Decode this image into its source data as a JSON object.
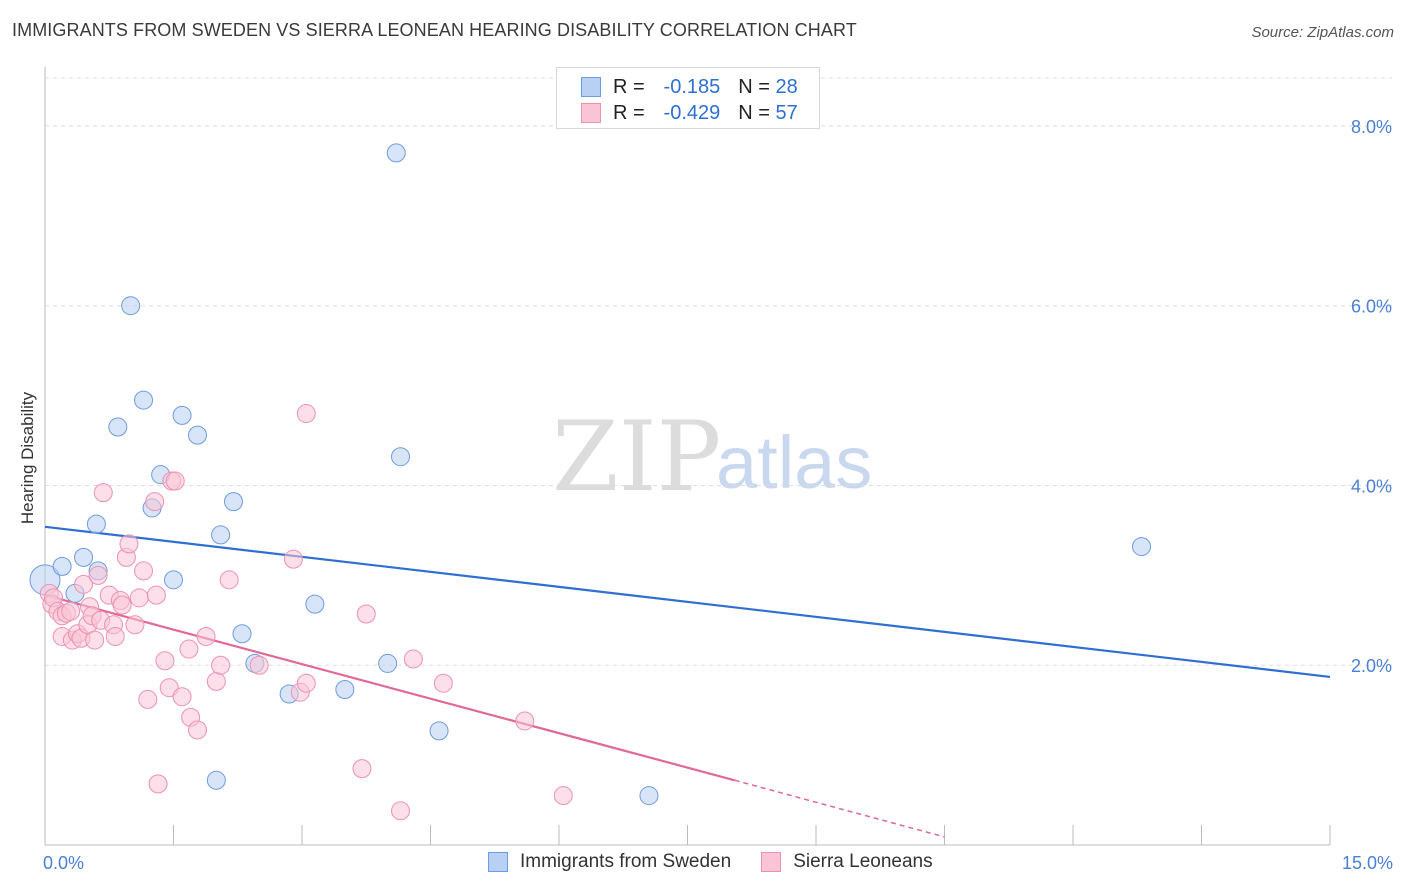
{
  "title": "IMMIGRANTS FROM SWEDEN VS SIERRA LEONEAN HEARING DISABILITY CORRELATION CHART",
  "source": "Source: ZipAtlas.com",
  "watermark": {
    "zip": "ZIP",
    "atlas": "atlas"
  },
  "legend_top": {
    "rows": [
      {
        "r_label": "R =",
        "r_value": "-0.185",
        "n_label": "N =",
        "n_value": "28",
        "fill": "#b8d0f4",
        "stroke": "#6f9be0"
      },
      {
        "r_label": "R =",
        "r_value": "-0.429",
        "n_label": "N =",
        "n_value": "57",
        "fill": "#f9c4d5",
        "stroke": "#ee91b0"
      }
    ]
  },
  "legend_bottom": {
    "items": [
      {
        "label": "Immigrants from Sweden",
        "fill": "#b8d0f4",
        "stroke": "#6f9be0"
      },
      {
        "label": "Sierra Leoneans",
        "fill": "#f9c4d5",
        "stroke": "#ee91b0"
      }
    ]
  },
  "chart_data": {
    "type": "scatter",
    "title": "IMMIGRANTS FROM SWEDEN VS SIERRA LEONEAN HEARING DISABILITY CORRELATION CHART",
    "xlabel": "",
    "ylabel": "Hearing Disability",
    "xlim": [
      0,
      15
    ],
    "ylim": [
      0,
      8.6
    ],
    "x_tick_labels": [
      "0.0%",
      "15.0%"
    ],
    "y_ticks": [
      2,
      4,
      6,
      8
    ],
    "y_tick_labels": [
      "2.0%",
      "4.0%",
      "6.0%",
      "8.0%"
    ],
    "grid": true,
    "legend_position": "top-center",
    "series": [
      {
        "name": "Immigrants from Sweden",
        "color": "#6f9be0",
        "fill": "#b8d0f4",
        "line_color": "#2f6fd1",
        "trend": {
          "x": [
            0.0,
            15.0
          ],
          "y": [
            3.54,
            1.87
          ]
        },
        "points": [
          [
            0.0,
            2.95
          ],
          [
            0.2,
            3.1
          ],
          [
            0.35,
            2.8
          ],
          [
            0.45,
            3.2
          ],
          [
            0.62,
            3.05
          ],
          [
            0.6,
            3.57
          ],
          [
            0.85,
            4.65
          ],
          [
            1.0,
            6.0
          ],
          [
            1.15,
            4.95
          ],
          [
            1.25,
            3.75
          ],
          [
            1.35,
            4.12
          ],
          [
            1.5,
            2.95
          ],
          [
            1.6,
            4.78
          ],
          [
            1.78,
            4.56
          ],
          [
            2.0,
            0.72
          ],
          [
            2.05,
            3.45
          ],
          [
            2.2,
            3.82
          ],
          [
            2.3,
            2.35
          ],
          [
            2.45,
            2.02
          ],
          [
            2.85,
            1.68
          ],
          [
            3.15,
            2.68
          ],
          [
            3.5,
            1.73
          ],
          [
            4.0,
            2.02
          ],
          [
            4.15,
            4.32
          ],
          [
            4.6,
            1.27
          ],
          [
            4.1,
            7.7
          ],
          [
            7.05,
            0.55
          ],
          [
            12.8,
            3.32
          ]
        ]
      },
      {
        "name": "Sierra Leoneans",
        "color": "#ee91b0",
        "fill": "#f9c4d5",
        "line_color": "#e06995",
        "trend": {
          "x": [
            0.0,
            8.05
          ],
          "y": [
            2.78,
            0.72
          ]
        },
        "trend_dashed": {
          "x": [
            8.05,
            10.5
          ],
          "y": [
            0.72,
            0.09
          ]
        },
        "points": [
          [
            0.05,
            2.8
          ],
          [
            0.08,
            2.68
          ],
          [
            0.1,
            2.75
          ],
          [
            0.15,
            2.6
          ],
          [
            0.2,
            2.55
          ],
          [
            0.2,
            2.32
          ],
          [
            0.25,
            2.58
          ],
          [
            0.3,
            2.6
          ],
          [
            0.32,
            2.28
          ],
          [
            0.38,
            2.35
          ],
          [
            0.42,
            2.3
          ],
          [
            0.45,
            2.9
          ],
          [
            0.5,
            2.45
          ],
          [
            0.52,
            2.65
          ],
          [
            0.55,
            2.55
          ],
          [
            0.58,
            2.28
          ],
          [
            0.62,
            3.0
          ],
          [
            0.65,
            2.5
          ],
          [
            0.68,
            3.92
          ],
          [
            0.75,
            2.78
          ],
          [
            0.8,
            2.45
          ],
          [
            0.82,
            2.32
          ],
          [
            0.88,
            2.72
          ],
          [
            0.9,
            2.67
          ],
          [
            0.95,
            3.2
          ],
          [
            0.98,
            3.35
          ],
          [
            1.05,
            2.45
          ],
          [
            1.1,
            2.75
          ],
          [
            1.15,
            3.05
          ],
          [
            1.2,
            1.62
          ],
          [
            1.3,
            2.78
          ],
          [
            1.28,
            3.82
          ],
          [
            1.32,
            0.68
          ],
          [
            1.4,
            2.05
          ],
          [
            1.45,
            1.75
          ],
          [
            1.48,
            4.05
          ],
          [
            1.52,
            4.05
          ],
          [
            1.6,
            1.65
          ],
          [
            1.68,
            2.18
          ],
          [
            1.7,
            1.42
          ],
          [
            1.78,
            1.28
          ],
          [
            1.88,
            2.32
          ],
          [
            2.0,
            1.82
          ],
          [
            2.05,
            2.0
          ],
          [
            2.15,
            2.95
          ],
          [
            2.5,
            2.0
          ],
          [
            2.9,
            3.18
          ],
          [
            2.98,
            1.7
          ],
          [
            3.05,
            4.8
          ],
          [
            3.05,
            1.8
          ],
          [
            3.7,
            0.85
          ],
          [
            3.75,
            2.57
          ],
          [
            4.15,
            0.38
          ],
          [
            4.3,
            2.07
          ],
          [
            4.65,
            1.8
          ],
          [
            5.6,
            1.38
          ],
          [
            6.05,
            0.55
          ]
        ]
      }
    ]
  }
}
